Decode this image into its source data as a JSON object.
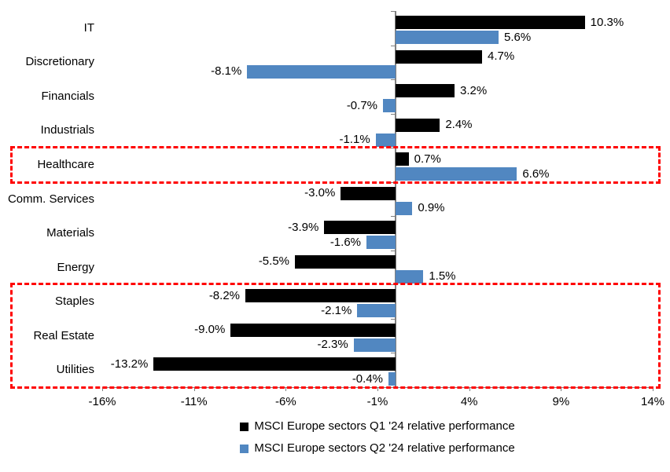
{
  "chart_data": {
    "type": "bar",
    "orientation": "horizontal",
    "title": "",
    "categories": [
      "IT",
      "Discretionary",
      "Financials",
      "Industrials",
      "Healthcare",
      "Comm. Services",
      "Materials",
      "Energy",
      "Staples",
      "Real Estate",
      "Utilities"
    ],
    "series": [
      {
        "key": "q1",
        "name": "MSCI Europe sectors Q1 '24 relative performance",
        "color": "#000000",
        "values": [
          10.3,
          4.7,
          3.2,
          2.4,
          0.7,
          -3.0,
          -3.9,
          -5.5,
          -8.2,
          -9.0,
          -13.2
        ],
        "value_labels": [
          "10.3%",
          "4.7%",
          "3.2%",
          "2.4%",
          "0.7%",
          "-3.0%",
          "-3.9%",
          "-5.5%",
          "-8.2%",
          "-9.0%",
          "-13.2%"
        ]
      },
      {
        "key": "q2",
        "name": "MSCI Europe sectors Q2 '24 relative performance",
        "color": "#5187C1",
        "values": [
          5.6,
          -8.1,
          -0.7,
          -1.1,
          6.6,
          0.9,
          -1.6,
          1.5,
          -2.1,
          -2.3,
          -0.4
        ],
        "value_labels": [
          "5.6%",
          "-8.1%",
          "-0.7%",
          "-1.1%",
          "6.6%",
          "0.9%",
          "-1.6%",
          "1.5%",
          "-2.1%",
          "-2.3%",
          "-0.4%"
        ]
      }
    ],
    "xlim": [
      -16,
      14
    ],
    "x_ticks": [
      {
        "value": -16,
        "label": "-16%"
      },
      {
        "value": -11,
        "label": "-11%"
      },
      {
        "value": -6,
        "label": "-6%"
      },
      {
        "value": -1,
        "label": "-1%"
      },
      {
        "value": 4,
        "label": "4%"
      },
      {
        "value": 9,
        "label": "9%"
      },
      {
        "value": 14,
        "label": "14%"
      }
    ],
    "grid": false,
    "legend_position": "bottom",
    "axis_color": "#808080",
    "highlight_color": "#FF0000",
    "highlight_boxes": [
      {
        "categories": [
          "Healthcare"
        ],
        "color": "#FF0000",
        "style": "dashed"
      },
      {
        "categories": [
          "Staples",
          "Real Estate",
          "Utilities"
        ],
        "color": "#FF0000",
        "style": "dashed"
      }
    ]
  }
}
